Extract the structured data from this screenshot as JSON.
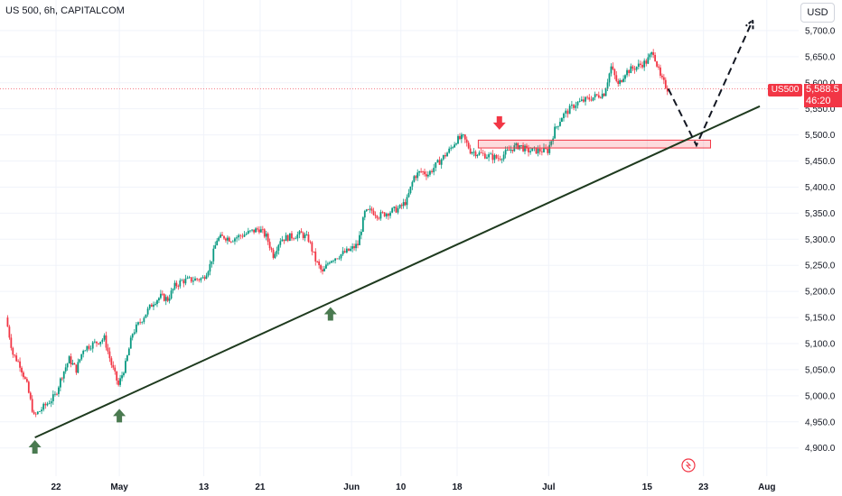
{
  "header": {
    "title": "US 500, 6h, CAPITALCOM",
    "currency": "USD"
  },
  "price_tag": {
    "symbol": "US500",
    "price": "5,588.5",
    "countdown": "46:20"
  },
  "colors": {
    "up": "#089981",
    "down": "#f23645",
    "trendline": "#1e3a1e",
    "arrow_up": "#4a7a50",
    "arrow_down": "#f23645",
    "zone": "#f23645"
  },
  "chart_data": {
    "type": "candlestick",
    "title": "US 500, 6h, CAPITALCOM",
    "ylim": [
      4875,
      5750
    ],
    "y_ticks": [
      "5,700.0",
      "5,650.0",
      "5,600.0",
      "5,550.0",
      "5,500.0",
      "5,450.0",
      "5,400.0",
      "5,350.0",
      "5,300.0",
      "5,250.0",
      "5,200.0",
      "5,150.0",
      "5,100.0",
      "5,050.0",
      "5,000.0",
      "4,950.0",
      "4,900.0"
    ],
    "x_ticks": [
      {
        "label": "22",
        "date": "2024-04-22"
      },
      {
        "label": "May",
        "date": "2024-05-01"
      },
      {
        "label": "13",
        "date": "2024-05-13"
      },
      {
        "label": "21",
        "date": "2024-05-21"
      },
      {
        "label": "Jun",
        "date": "2024-06-03"
      },
      {
        "label": "10",
        "date": "2024-06-10"
      },
      {
        "label": "18",
        "date": "2024-06-18"
      },
      {
        "label": "Jul",
        "date": "2024-07-01"
      },
      {
        "label": "15",
        "date": "2024-07-15"
      },
      {
        "label": "23",
        "date": "2024-07-23"
      },
      {
        "label": "Aug",
        "date": "2024-08-01"
      }
    ],
    "price_path": [
      [
        "2024-04-15",
        5150
      ],
      [
        "2024-04-16",
        5080
      ],
      [
        "2024-04-17",
        5060
      ],
      [
        "2024-04-18",
        5020
      ],
      [
        "2024-04-19",
        4960
      ],
      [
        "2024-04-22",
        5000
      ],
      [
        "2024-04-23",
        5040
      ],
      [
        "2024-04-24",
        5070
      ],
      [
        "2024-04-25",
        5050
      ],
      [
        "2024-04-26",
        5090
      ],
      [
        "2024-04-29",
        5110
      ],
      [
        "2024-04-30",
        5060
      ],
      [
        "2024-05-01",
        5020
      ],
      [
        "2024-05-02",
        5060
      ],
      [
        "2024-05-03",
        5120
      ],
      [
        "2024-05-06",
        5180
      ],
      [
        "2024-05-07",
        5190
      ],
      [
        "2024-05-08",
        5185
      ],
      [
        "2024-05-09",
        5210
      ],
      [
        "2024-05-10",
        5220
      ],
      [
        "2024-05-13",
        5225
      ],
      [
        "2024-05-14",
        5250
      ],
      [
        "2024-05-15",
        5300
      ],
      [
        "2024-05-16",
        5305
      ],
      [
        "2024-05-17",
        5300
      ],
      [
        "2024-05-20",
        5315
      ],
      [
        "2024-05-21",
        5320
      ],
      [
        "2024-05-22",
        5305
      ],
      [
        "2024-05-23",
        5270
      ],
      [
        "2024-05-24",
        5300
      ],
      [
        "2024-05-27",
        5310
      ],
      [
        "2024-05-28",
        5300
      ],
      [
        "2024-05-29",
        5260
      ],
      [
        "2024-05-30",
        5235
      ],
      [
        "2024-05-31",
        5260
      ],
      [
        "2024-06-03",
        5280
      ],
      [
        "2024-06-04",
        5290
      ],
      [
        "2024-06-05",
        5350
      ],
      [
        "2024-06-06",
        5355
      ],
      [
        "2024-06-07",
        5345
      ],
      [
        "2024-06-10",
        5360
      ],
      [
        "2024-06-11",
        5375
      ],
      [
        "2024-06-12",
        5420
      ],
      [
        "2024-06-13",
        5430
      ],
      [
        "2024-06-14",
        5425
      ],
      [
        "2024-06-17",
        5470
      ],
      [
        "2024-06-18",
        5490
      ],
      [
        "2024-06-19",
        5495
      ],
      [
        "2024-06-20",
        5470
      ],
      [
        "2024-06-21",
        5465
      ],
      [
        "2024-06-24",
        5455
      ],
      [
        "2024-06-25",
        5465
      ],
      [
        "2024-06-26",
        5475
      ],
      [
        "2024-06-27",
        5480
      ],
      [
        "2024-06-28",
        5470
      ],
      [
        "2024-07-01",
        5470
      ],
      [
        "2024-07-02",
        5510
      ],
      [
        "2024-07-03",
        5535
      ],
      [
        "2024-07-05",
        5560
      ],
      [
        "2024-07-08",
        5575
      ],
      [
        "2024-07-09",
        5580
      ],
      [
        "2024-07-10",
        5630
      ],
      [
        "2024-07-11",
        5595
      ],
      [
        "2024-07-12",
        5620
      ],
      [
        "2024-07-15",
        5640
      ],
      [
        "2024-07-16",
        5660
      ],
      [
        "2024-07-17",
        5610
      ],
      [
        "2024-07-18",
        5588.5
      ]
    ],
    "trendline": {
      "from": [
        "2024-04-19",
        4920
      ],
      "to": [
        "2024-07-31",
        5555
      ]
    },
    "projection": [
      [
        "2024-07-18",
        5588.5
      ],
      [
        "2024-07-22",
        5480
      ],
      [
        "2024-07-30",
        5720
      ]
    ],
    "zone": {
      "from": "2024-06-21",
      "to": "2024-07-24",
      "low": 5475,
      "high": 5490
    },
    "up_arrows": [
      [
        "2024-04-19",
        4915
      ],
      [
        "2024-05-01",
        4975
      ],
      [
        "2024-05-31",
        5170
      ]
    ],
    "down_arrows": [
      [
        "2024-06-24",
        5510
      ]
    ]
  }
}
